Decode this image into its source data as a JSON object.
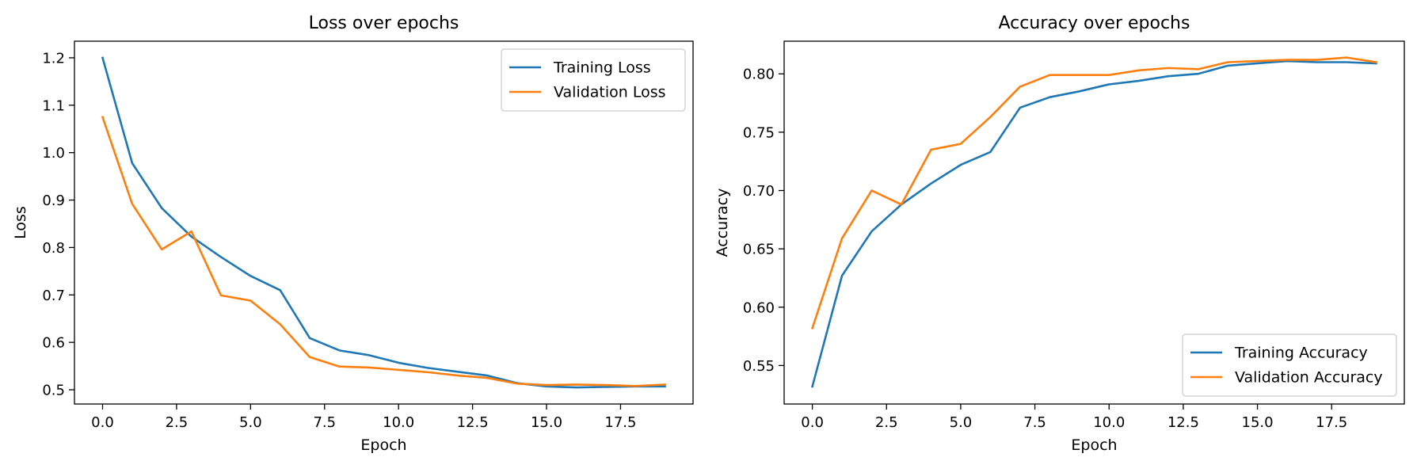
{
  "colors": {
    "training": "#1f77b4",
    "validation": "#ff7f0e",
    "axis": "#000000",
    "legend_border": "#cccccc"
  },
  "chart_data": [
    {
      "type": "line",
      "title": "Loss over epochs",
      "xlabel": "Epoch",
      "ylabel": "Loss",
      "xlim": [
        -0.95,
        19.95
      ],
      "ylim": [
        0.47,
        1.235
      ],
      "xticks": [
        0,
        2.5,
        5,
        7.5,
        10,
        12.5,
        15,
        17.5
      ],
      "xtick_labels": [
        "0.0",
        "2.5",
        "5.0",
        "7.5",
        "10.0",
        "12.5",
        "15.0",
        "17.5"
      ],
      "yticks": [
        0.5,
        0.6,
        0.7,
        0.8,
        0.9,
        1.0,
        1.1,
        1.2
      ],
      "ytick_labels": [
        "0.5",
        "0.6",
        "0.7",
        "0.8",
        "0.9",
        "1.0",
        "1.1",
        "1.2"
      ],
      "grid": false,
      "legend": "upper right",
      "x": [
        0,
        1,
        2,
        3,
        4,
        5,
        6,
        7,
        8,
        9,
        10,
        11,
        12,
        13,
        14,
        15,
        16,
        17,
        18,
        19
      ],
      "series": [
        {
          "name": "Training Loss",
          "color_key": "training",
          "values": [
            1.2,
            0.978,
            0.883,
            0.823,
            0.78,
            0.74,
            0.71,
            0.609,
            0.583,
            0.573,
            0.557,
            0.546,
            0.538,
            0.53,
            0.514,
            0.507,
            0.505,
            0.506,
            0.507,
            0.507
          ]
        },
        {
          "name": "Validation Loss",
          "color_key": "validation",
          "values": [
            1.075,
            0.892,
            0.796,
            0.834,
            0.699,
            0.688,
            0.638,
            0.569,
            0.549,
            0.547,
            0.542,
            0.537,
            0.53,
            0.525,
            0.513,
            0.51,
            0.511,
            0.51,
            0.508,
            0.511
          ]
        }
      ]
    },
    {
      "type": "line",
      "title": "Accuracy over epochs",
      "xlabel": "Epoch",
      "ylabel": "Accuracy",
      "xlim": [
        -0.95,
        19.95
      ],
      "ylim": [
        0.517,
        0.828
      ],
      "xticks": [
        0,
        2.5,
        5,
        7.5,
        10,
        12.5,
        15,
        17.5
      ],
      "xtick_labels": [
        "0.0",
        "2.5",
        "5.0",
        "7.5",
        "10.0",
        "12.5",
        "15.0",
        "17.5"
      ],
      "yticks": [
        0.55,
        0.6,
        0.65,
        0.7,
        0.75,
        0.8
      ],
      "ytick_labels": [
        "0.55",
        "0.60",
        "0.65",
        "0.70",
        "0.75",
        "0.80"
      ],
      "grid": false,
      "legend": "lower right",
      "x": [
        0,
        1,
        2,
        3,
        4,
        5,
        6,
        7,
        8,
        9,
        10,
        11,
        12,
        13,
        14,
        15,
        16,
        17,
        18,
        19
      ],
      "series": [
        {
          "name": "Training Accuracy",
          "color_key": "training",
          "values": [
            0.532,
            0.627,
            0.665,
            0.688,
            0.706,
            0.722,
            0.733,
            0.771,
            0.78,
            0.785,
            0.791,
            0.794,
            0.798,
            0.8,
            0.807,
            0.809,
            0.811,
            0.81,
            0.81,
            0.809
          ]
        },
        {
          "name": "Validation Accuracy",
          "color_key": "validation",
          "values": [
            0.582,
            0.659,
            0.7,
            0.688,
            0.735,
            0.74,
            0.763,
            0.789,
            0.799,
            0.799,
            0.799,
            0.803,
            0.805,
            0.804,
            0.81,
            0.811,
            0.812,
            0.812,
            0.814,
            0.81
          ]
        }
      ]
    }
  ]
}
